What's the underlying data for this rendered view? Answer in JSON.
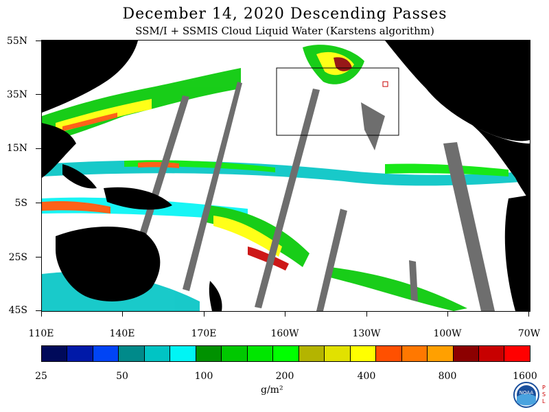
{
  "header": {
    "title": "December 14, 2020  Descending Passes",
    "subtitle": "SSM/I + SSMIS Cloud Liquid Water (Karstens algorithm)"
  },
  "axes": {
    "lat_labels": [
      "55N",
      "35N",
      "15N",
      "5S",
      "25S",
      "45S"
    ],
    "lon_labels": [
      "110E",
      "140E",
      "170E",
      "160W",
      "130W",
      "100W",
      "70W"
    ]
  },
  "colorbar": {
    "labels": [
      "25",
      "50",
      "100",
      "200",
      "400",
      "800",
      "1600"
    ],
    "units": "g/m²",
    "colors": [
      "#000a5a",
      "#0019a8",
      "#0044f5",
      "#008a8a",
      "#00c4c4",
      "#00f5f5",
      "#009100",
      "#00c800",
      "#00e600",
      "#00ff00",
      "#b4b400",
      "#e1e100",
      "#ffff00",
      "#ff5000",
      "#ff7800",
      "#ffa000",
      "#8c0000",
      "#c80000",
      "#ff0000"
    ]
  },
  "legend_colors": {
    "land": "#000000",
    "missing_swath": "#6e6e6e",
    "no_data_ocean": "#ffffff"
  },
  "branding": {
    "logo": "noaa-logo",
    "org_letters": "PSL"
  }
}
